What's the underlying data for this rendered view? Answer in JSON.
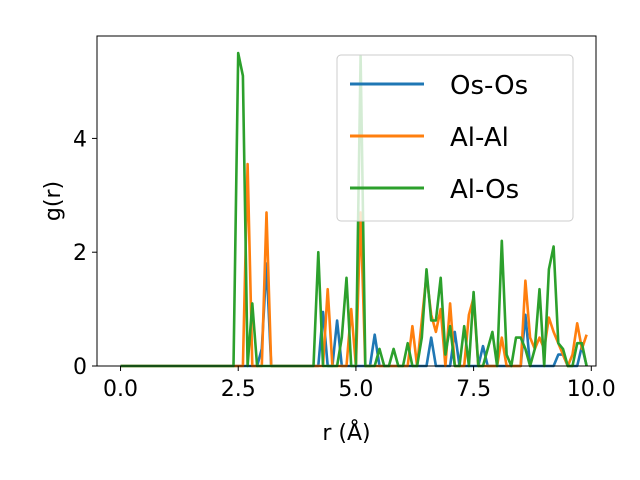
{
  "chart_data": {
    "type": "line",
    "xlabel": "r (Å)",
    "ylabel": "g(r)",
    "xlim": [
      -0.5,
      10.1
    ],
    "ylim": [
      0,
      5.8
    ],
    "xticks": [
      0.0,
      2.5,
      5.0,
      7.5,
      10.0
    ],
    "xtick_labels": [
      "0.0",
      "2.5",
      "5.0",
      "7.5",
      "10.0"
    ],
    "yticks": [
      0,
      2,
      4
    ],
    "ytick_labels": [
      "0",
      "2",
      "4"
    ],
    "grid": false,
    "legend_position": "upper-right",
    "series": [
      {
        "name": "Os-Os",
        "color": "#1f77b4",
        "points": [
          [
            0,
            0
          ],
          [
            2.7,
            0
          ],
          [
            2.8,
            0
          ],
          [
            2.9,
            0
          ],
          [
            3.0,
            0.3
          ],
          [
            3.1,
            1.8
          ],
          [
            3.2,
            0
          ],
          [
            4.2,
            0
          ],
          [
            4.3,
            0.95
          ],
          [
            4.4,
            0
          ],
          [
            4.5,
            0
          ],
          [
            4.6,
            0.8
          ],
          [
            4.7,
            0
          ],
          [
            5.3,
            0
          ],
          [
            5.4,
            0.55
          ],
          [
            5.5,
            0
          ],
          [
            6.5,
            0
          ],
          [
            6.6,
            0.5
          ],
          [
            6.7,
            0
          ],
          [
            7.0,
            0
          ],
          [
            7.1,
            0.6
          ],
          [
            7.2,
            0
          ],
          [
            7.6,
            0
          ],
          [
            7.7,
            0.35
          ],
          [
            7.8,
            0
          ],
          [
            8.5,
            0
          ],
          [
            8.6,
            0.9
          ],
          [
            8.7,
            0
          ],
          [
            9.1,
            0
          ],
          [
            9.2,
            0
          ],
          [
            9.3,
            0.2
          ],
          [
            9.4,
            0.2
          ],
          [
            9.5,
            0
          ],
          [
            9.7,
            0
          ],
          [
            9.8,
            0.35
          ],
          [
            9.9,
            0
          ]
        ]
      },
      {
        "name": "Al-Al",
        "color": "#ff7f0e",
        "points": [
          [
            0,
            0
          ],
          [
            2.6,
            0
          ],
          [
            2.7,
            3.55
          ],
          [
            2.8,
            0
          ],
          [
            3.0,
            0
          ],
          [
            3.1,
            2.7
          ],
          [
            3.2,
            0
          ],
          [
            4.3,
            0
          ],
          [
            4.4,
            1.35
          ],
          [
            4.5,
            0
          ],
          [
            4.8,
            0
          ],
          [
            4.9,
            1.0
          ],
          [
            5.0,
            0
          ],
          [
            5.1,
            2.7
          ],
          [
            5.2,
            0
          ],
          [
            6.1,
            0
          ],
          [
            6.2,
            0.7
          ],
          [
            6.3,
            0
          ],
          [
            6.5,
            1.6
          ],
          [
            6.6,
            0.9
          ],
          [
            6.7,
            0.6
          ],
          [
            6.8,
            1.0
          ],
          [
            6.9,
            0
          ],
          [
            7.0,
            1.1
          ],
          [
            7.1,
            0
          ],
          [
            7.3,
            0
          ],
          [
            7.4,
            0.9
          ],
          [
            7.5,
            1.2
          ],
          [
            7.6,
            0
          ],
          [
            8.0,
            0
          ],
          [
            8.1,
            0.5
          ],
          [
            8.2,
            0
          ],
          [
            8.5,
            0
          ],
          [
            8.6,
            1.5
          ],
          [
            8.7,
            0.5
          ],
          [
            8.8,
            0.3
          ],
          [
            8.9,
            0.5
          ],
          [
            9.0,
            0.3
          ],
          [
            9.1,
            0.85
          ],
          [
            9.2,
            0.6
          ],
          [
            9.3,
            0.4
          ],
          [
            9.4,
            0.2
          ],
          [
            9.5,
            0
          ],
          [
            9.6,
            0.2
          ],
          [
            9.7,
            0.75
          ],
          [
            9.8,
            0.3
          ],
          [
            9.9,
            0.55
          ]
        ]
      },
      {
        "name": "Al-Os",
        "color": "#2ca02c",
        "points": [
          [
            0,
            0
          ],
          [
            2.4,
            0
          ],
          [
            2.5,
            5.5
          ],
          [
            2.6,
            5.1
          ],
          [
            2.7,
            0
          ],
          [
            2.8,
            1.1
          ],
          [
            2.9,
            0
          ],
          [
            4.1,
            0
          ],
          [
            4.2,
            2.0
          ],
          [
            4.3,
            0
          ],
          [
            4.6,
            0
          ],
          [
            4.7,
            0.5
          ],
          [
            4.8,
            1.55
          ],
          [
            4.9,
            0
          ],
          [
            5.0,
            0
          ],
          [
            5.1,
            5.45
          ],
          [
            5.2,
            0
          ],
          [
            5.4,
            0
          ],
          [
            5.5,
            0.3
          ],
          [
            5.6,
            0
          ],
          [
            5.7,
            0
          ],
          [
            5.8,
            0.3
          ],
          [
            5.9,
            0
          ],
          [
            6.0,
            0
          ],
          [
            6.1,
            0.4
          ],
          [
            6.2,
            0
          ],
          [
            6.3,
            0
          ],
          [
            6.4,
            0.5
          ],
          [
            6.5,
            1.7
          ],
          [
            6.6,
            0.8
          ],
          [
            6.7,
            0.8
          ],
          [
            6.8,
            1.55
          ],
          [
            6.9,
            0.2
          ],
          [
            7.0,
            0.7
          ],
          [
            7.1,
            0
          ],
          [
            7.2,
            0
          ],
          [
            7.3,
            0.7
          ],
          [
            7.4,
            0
          ],
          [
            7.5,
            1.3
          ],
          [
            7.6,
            0
          ],
          [
            7.7,
            0
          ],
          [
            7.8,
            0.3
          ],
          [
            7.9,
            0.6
          ],
          [
            8.0,
            0
          ],
          [
            8.1,
            2.2
          ],
          [
            8.2,
            0.2
          ],
          [
            8.3,
            0
          ],
          [
            8.4,
            0.5
          ],
          [
            8.5,
            0.5
          ],
          [
            8.6,
            0.3
          ],
          [
            8.7,
            0
          ],
          [
            8.8,
            0.3
          ],
          [
            8.9,
            1.35
          ],
          [
            9.0,
            0
          ],
          [
            9.1,
            1.7
          ],
          [
            9.2,
            2.1
          ],
          [
            9.3,
            0.4
          ],
          [
            9.4,
            0.3
          ],
          [
            9.5,
            0
          ],
          [
            9.6,
            0
          ],
          [
            9.7,
            0.4
          ],
          [
            9.8,
            0.4
          ],
          [
            9.9,
            0
          ]
        ]
      }
    ]
  }
}
